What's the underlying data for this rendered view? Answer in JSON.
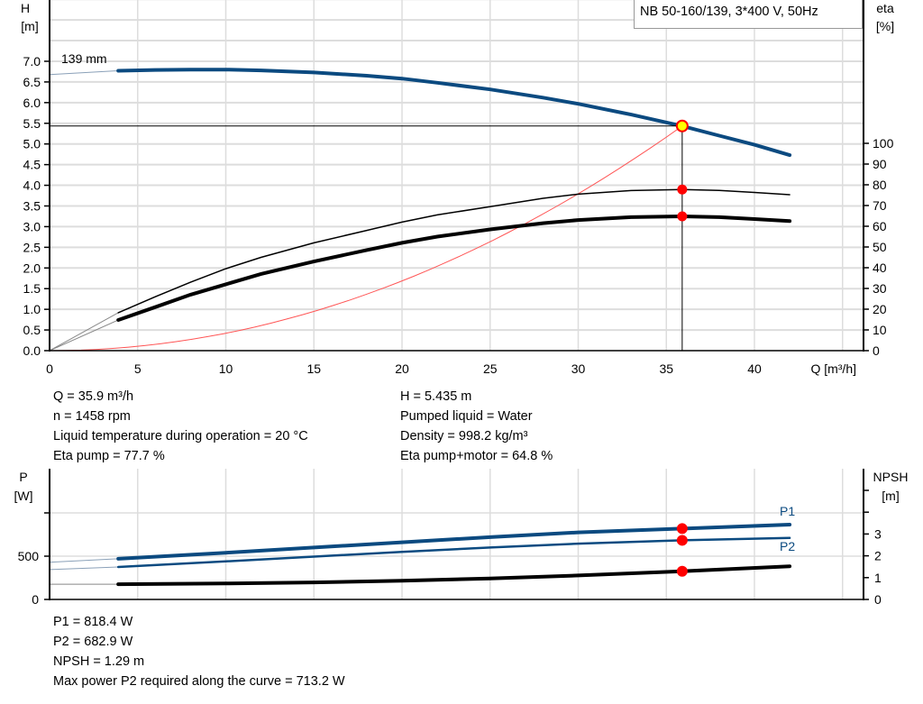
{
  "title": "NB 50-160/139, 3*400 V, 50Hz",
  "colors": {
    "blue": "#0b4a80",
    "red": "#ff0000",
    "system_curve": "#ff5555",
    "grid": "#dddddd",
    "duty_point_fill": "#ffff00"
  },
  "chart_data": [
    {
      "type": "line",
      "xlabel": "Q [m³/h]",
      "xlim": [
        0,
        45
      ],
      "x_ticks": [
        0,
        5,
        10,
        15,
        20,
        25,
        30,
        35,
        40
      ],
      "grid": true,
      "left_axis": {
        "label": "H",
        "unit": "[m]",
        "ylim": [
          0,
          8.5
        ],
        "ticks": [
          "0.0",
          "0.5",
          "1.0",
          "1.5",
          "2.0",
          "2.5",
          "3.0",
          "3.5",
          "4.0",
          "4.5",
          "5.0",
          "5.5",
          "6.0",
          "6.5",
          "7.0"
        ]
      },
      "right_axis": {
        "label": "eta",
        "unit": "[%]",
        "ylim": [
          0,
          100
        ],
        "ticks": [
          0,
          10,
          20,
          30,
          40,
          50,
          60,
          70,
          80,
          90,
          100
        ]
      },
      "curve_label": "139 mm",
      "series": [
        {
          "axis": "left",
          "color": "blue",
          "points": [
            [
              3.9,
              6.77
            ],
            [
              6,
              6.79
            ],
            [
              8,
              6.8
            ],
            [
              10,
              6.8
            ],
            [
              12,
              6.78
            ],
            [
              15,
              6.73
            ],
            [
              18,
              6.65
            ],
            [
              20,
              6.58
            ],
            [
              22,
              6.48
            ],
            [
              25,
              6.32
            ],
            [
              28,
              6.12
            ],
            [
              30,
              5.97
            ],
            [
              33,
              5.71
            ],
            [
              35.9,
              5.435
            ],
            [
              38,
              5.2
            ],
            [
              40,
              4.98
            ],
            [
              42,
              4.73
            ]
          ],
          "extension": [
            [
              0,
              6.68
            ],
            [
              3.9,
              6.77
            ]
          ]
        },
        {
          "axis": "right",
          "color": "black",
          "width": "thin",
          "points": [
            [
              3.9,
              18.3
            ],
            [
              6,
              26
            ],
            [
              8,
              33
            ],
            [
              10,
              39.5
            ],
            [
              12,
              45
            ],
            [
              15,
              52
            ],
            [
              18,
              58
            ],
            [
              20,
              62
            ],
            [
              22,
              65.5
            ],
            [
              25,
              69.5
            ],
            [
              28,
              73.5
            ],
            [
              30,
              75.5
            ],
            [
              33,
              77.2
            ],
            [
              35.9,
              77.7
            ],
            [
              38,
              77.3
            ],
            [
              40,
              76.3
            ],
            [
              42,
              75.2
            ]
          ],
          "extension": [
            [
              0,
              0
            ],
            [
              3.9,
              18.3
            ]
          ]
        },
        {
          "axis": "right",
          "color": "black",
          "width": "thick",
          "points": [
            [
              3.9,
              14.8
            ],
            [
              6,
              21
            ],
            [
              8,
              27
            ],
            [
              10,
              32
            ],
            [
              12,
              37
            ],
            [
              15,
              43
            ],
            [
              18,
              48.5
            ],
            [
              20,
              52
            ],
            [
              22,
              55
            ],
            [
              25,
              58.5
            ],
            [
              28,
              61.5
            ],
            [
              30,
              63
            ],
            [
              33,
              64.4
            ],
            [
              35.9,
              64.8
            ],
            [
              38,
              64.4
            ],
            [
              40,
              63.5
            ],
            [
              42,
              62.5
            ]
          ],
          "extension": [
            [
              0,
              0
            ],
            [
              3.9,
              14.8
            ]
          ]
        },
        {
          "axis": "left",
          "color": "system_curve",
          "width": "thin",
          "equation": "H = 0.004217 * Q^2",
          "range": [
            0,
            35.9
          ]
        }
      ],
      "duty_point": {
        "Q": 35.9,
        "H": 5.435,
        "eta_pump": 77.7,
        "eta_pump_motor": 64.8
      }
    },
    {
      "type": "line",
      "xlim": [
        0,
        45
      ],
      "grid": true,
      "left_axis": {
        "label": "P",
        "unit": "[W]",
        "ylim": [
          0,
          1500
        ],
        "ticks": [
          {
            "value": 0,
            "label": "0"
          },
          {
            "value": 500,
            "label": "500"
          },
          {
            "value": 1000,
            "label": ""
          }
        ]
      },
      "right_axis": {
        "label": "NPSH",
        "unit": "[m]",
        "ylim": [
          0,
          6
        ],
        "ticks": [
          {
            "value": 0,
            "label": "0"
          },
          {
            "value": 1,
            "label": "1"
          },
          {
            "value": 2,
            "label": "2"
          },
          {
            "value": 3,
            "label": "3"
          },
          {
            "value": 4,
            "label": ""
          },
          {
            "value": 5,
            "label": ""
          }
        ]
      },
      "series": [
        {
          "name": "P1",
          "axis": "left",
          "color": "blue",
          "width": "thick",
          "points": [
            [
              3.9,
              470
            ],
            [
              10,
              540
            ],
            [
              15,
              600
            ],
            [
              20,
              660
            ],
            [
              25,
              720
            ],
            [
              30,
              775
            ],
            [
              35.9,
              818.4
            ],
            [
              42,
              865
            ]
          ],
          "extension": [
            [
              0,
              430
            ],
            [
              3.9,
              470
            ]
          ]
        },
        {
          "name": "P2",
          "axis": "left",
          "color": "blue",
          "width": "medium",
          "points": [
            [
              3.9,
              375
            ],
            [
              10,
              440
            ],
            [
              15,
              495
            ],
            [
              20,
              550
            ],
            [
              25,
              600
            ],
            [
              30,
              645
            ],
            [
              35.9,
              682.9
            ],
            [
              42,
              710
            ]
          ],
          "extension": [
            [
              0,
              345
            ],
            [
              3.9,
              375
            ]
          ]
        },
        {
          "axis": "right",
          "color": "black",
          "width": "thick",
          "points": [
            [
              3.9,
              0.7
            ],
            [
              10,
              0.73
            ],
            [
              15,
              0.78
            ],
            [
              20,
              0.86
            ],
            [
              25,
              0.96
            ],
            [
              30,
              1.1
            ],
            [
              35.9,
              1.29
            ],
            [
              42,
              1.52
            ]
          ],
          "extension": [
            [
              0,
              0.7
            ],
            [
              3.9,
              0.7
            ]
          ]
        }
      ],
      "duty_point": {
        "Q": 35.9,
        "P1": 818.4,
        "P2": 682.9,
        "NPSH": 1.29
      }
    }
  ],
  "results_top": {
    "left": [
      "Q = 35.9 m³/h",
      "n = 1458 rpm",
      "Liquid temperature during operation = 20 °C",
      "Eta pump = 77.7 %"
    ],
    "right": [
      "H = 5.435 m",
      "Pumped liquid = Water",
      "Density = 998.2 kg/m³",
      "Eta pump+motor = 64.8 %"
    ]
  },
  "results_bottom": [
    "P1 = 818.4 W",
    "P2 = 682.9 W",
    "NPSH = 1.29 m",
    "Max power P2 required along the curve = 713.2 W"
  ]
}
